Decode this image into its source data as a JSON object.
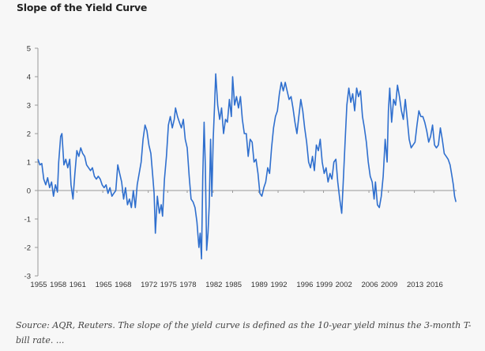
{
  "chart_data": {
    "type": "line",
    "title": "Slope of the Yield Curve",
    "xlabel": "",
    "ylabel": "",
    "ylim": [
      -3,
      5
    ],
    "xlim": [
      1955,
      2019.5
    ],
    "yticks": [
      5,
      4,
      3,
      2,
      1,
      0,
      -1,
      -2,
      -3
    ],
    "xtick_labels": [
      "1955",
      "1958",
      "1961",
      "1965",
      "1968",
      "1972",
      "1975",
      "1978",
      "1982",
      "1985",
      "1989",
      "1992",
      "1996",
      "1999",
      "2002",
      "2006",
      "2009",
      "2013",
      "2016"
    ],
    "grid": false,
    "legend": "none",
    "line_color": "#2f6fce",
    "series": [
      {
        "name": "10-year yield minus 3-month T-bill rate",
        "points": [
          [
            1955.0,
            1.1
          ],
          [
            1955.3,
            0.9
          ],
          [
            1955.6,
            0.95
          ],
          [
            1955.9,
            0.4
          ],
          [
            1956.2,
            0.2
          ],
          [
            1956.5,
            0.45
          ],
          [
            1956.8,
            0.1
          ],
          [
            1957.1,
            0.3
          ],
          [
            1957.4,
            -0.2
          ],
          [
            1957.7,
            0.2
          ],
          [
            1958.0,
            -0.05
          ],
          [
            1958.2,
            1.0
          ],
          [
            1958.5,
            1.9
          ],
          [
            1958.7,
            2.0
          ],
          [
            1959.0,
            0.9
          ],
          [
            1959.3,
            1.1
          ],
          [
            1959.6,
            0.8
          ],
          [
            1959.9,
            1.1
          ],
          [
            1960.1,
            0.2
          ],
          [
            1960.4,
            -0.3
          ],
          [
            1960.7,
            0.6
          ],
          [
            1961.0,
            1.4
          ],
          [
            1961.3,
            1.2
          ],
          [
            1961.6,
            1.5
          ],
          [
            1961.9,
            1.3
          ],
          [
            1962.2,
            1.2
          ],
          [
            1962.5,
            0.9
          ],
          [
            1962.8,
            0.8
          ],
          [
            1963.1,
            0.7
          ],
          [
            1963.4,
            0.8
          ],
          [
            1963.7,
            0.5
          ],
          [
            1964.0,
            0.4
          ],
          [
            1964.3,
            0.5
          ],
          [
            1964.6,
            0.4
          ],
          [
            1964.9,
            0.2
          ],
          [
            1965.2,
            0.1
          ],
          [
            1965.5,
            0.2
          ],
          [
            1965.8,
            -0.1
          ],
          [
            1966.1,
            0.1
          ],
          [
            1966.4,
            -0.2
          ],
          [
            1966.7,
            -0.1
          ],
          [
            1967.0,
            0.0
          ],
          [
            1967.3,
            0.9
          ],
          [
            1967.6,
            0.6
          ],
          [
            1967.9,
            0.3
          ],
          [
            1968.2,
            -0.3
          ],
          [
            1968.5,
            0.1
          ],
          [
            1968.8,
            -0.5
          ],
          [
            1969.1,
            -0.3
          ],
          [
            1969.4,
            -0.6
          ],
          [
            1969.7,
            0.0
          ],
          [
            1970.0,
            -0.6
          ],
          [
            1970.3,
            0.2
          ],
          [
            1970.6,
            0.6
          ],
          [
            1970.9,
            1.0
          ],
          [
            1971.2,
            1.8
          ],
          [
            1971.5,
            2.3
          ],
          [
            1971.8,
            2.1
          ],
          [
            1972.1,
            1.6
          ],
          [
            1972.4,
            1.3
          ],
          [
            1972.7,
            0.5
          ],
          [
            1972.9,
            -0.1
          ],
          [
            1973.1,
            -1.5
          ],
          [
            1973.4,
            -0.2
          ],
          [
            1973.7,
            -0.8
          ],
          [
            1974.0,
            -0.5
          ],
          [
            1974.2,
            -0.9
          ],
          [
            1974.5,
            0.4
          ],
          [
            1974.8,
            1.2
          ],
          [
            1975.1,
            2.3
          ],
          [
            1975.4,
            2.6
          ],
          [
            1975.7,
            2.2
          ],
          [
            1976.0,
            2.5
          ],
          [
            1976.2,
            2.9
          ],
          [
            1976.5,
            2.6
          ],
          [
            1976.8,
            2.4
          ],
          [
            1977.1,
            2.2
          ],
          [
            1977.4,
            2.5
          ],
          [
            1977.7,
            1.8
          ],
          [
            1978.0,
            1.5
          ],
          [
            1978.3,
            0.5
          ],
          [
            1978.6,
            -0.3
          ],
          [
            1978.9,
            -0.4
          ],
          [
            1979.2,
            -0.6
          ],
          [
            1979.5,
            -1.1
          ],
          [
            1979.8,
            -2.0
          ],
          [
            1980.0,
            -1.5
          ],
          [
            1980.2,
            -2.4
          ],
          [
            1980.4,
            0.5
          ],
          [
            1980.6,
            2.4
          ],
          [
            1980.8,
            0.8
          ],
          [
            1981.0,
            -2.1
          ],
          [
            1981.2,
            -1.5
          ],
          [
            1981.4,
            -0.5
          ],
          [
            1981.6,
            1.8
          ],
          [
            1981.8,
            -0.2
          ],
          [
            1982.0,
            1.8
          ],
          [
            1982.2,
            2.9
          ],
          [
            1982.4,
            4.1
          ],
          [
            1982.7,
            3.0
          ],
          [
            1983.0,
            2.5
          ],
          [
            1983.3,
            2.9
          ],
          [
            1983.6,
            2.0
          ],
          [
            1983.9,
            2.5
          ],
          [
            1984.2,
            2.4
          ],
          [
            1984.5,
            3.2
          ],
          [
            1984.8,
            2.6
          ],
          [
            1985.0,
            4.0
          ],
          [
            1985.3,
            3.0
          ],
          [
            1985.6,
            3.3
          ],
          [
            1985.9,
            2.9
          ],
          [
            1986.2,
            3.3
          ],
          [
            1986.5,
            2.5
          ],
          [
            1986.8,
            2.0
          ],
          [
            1987.1,
            2.0
          ],
          [
            1987.4,
            1.2
          ],
          [
            1987.7,
            1.8
          ],
          [
            1988.0,
            1.7
          ],
          [
            1988.3,
            1.0
          ],
          [
            1988.6,
            1.1
          ],
          [
            1988.9,
            0.6
          ],
          [
            1989.2,
            -0.1
          ],
          [
            1989.5,
            -0.2
          ],
          [
            1989.8,
            0.1
          ],
          [
            1990.1,
            0.3
          ],
          [
            1990.4,
            0.8
          ],
          [
            1990.7,
            0.6
          ],
          [
            1991.0,
            1.5
          ],
          [
            1991.3,
            2.2
          ],
          [
            1991.6,
            2.6
          ],
          [
            1991.9,
            2.8
          ],
          [
            1992.2,
            3.4
          ],
          [
            1992.5,
            3.8
          ],
          [
            1992.8,
            3.5
          ],
          [
            1993.1,
            3.8
          ],
          [
            1993.4,
            3.5
          ],
          [
            1993.7,
            3.2
          ],
          [
            1994.0,
            3.3
          ],
          [
            1994.3,
            2.9
          ],
          [
            1994.6,
            2.4
          ],
          [
            1994.9,
            2.0
          ],
          [
            1995.2,
            2.6
          ],
          [
            1995.5,
            3.2
          ],
          [
            1995.8,
            2.8
          ],
          [
            1996.1,
            2.2
          ],
          [
            1996.4,
            1.7
          ],
          [
            1996.7,
            1.0
          ],
          [
            1997.0,
            0.8
          ],
          [
            1997.3,
            1.2
          ],
          [
            1997.6,
            0.7
          ],
          [
            1997.9,
            1.6
          ],
          [
            1998.2,
            1.4
          ],
          [
            1998.5,
            1.8
          ],
          [
            1998.8,
            1.0
          ],
          [
            1999.1,
            0.6
          ],
          [
            1999.4,
            0.8
          ],
          [
            1999.7,
            0.3
          ],
          [
            2000.0,
            0.6
          ],
          [
            2000.3,
            0.4
          ],
          [
            2000.6,
            1.0
          ],
          [
            2000.9,
            1.1
          ],
          [
            2001.2,
            0.3
          ],
          [
            2001.5,
            -0.3
          ],
          [
            2001.8,
            -0.8
          ],
          [
            2002.0,
            0.1
          ],
          [
            2002.3,
            1.6
          ],
          [
            2002.6,
            3.0
          ],
          [
            2002.9,
            3.6
          ],
          [
            2003.2,
            3.1
          ],
          [
            2003.5,
            3.4
          ],
          [
            2003.8,
            2.8
          ],
          [
            2004.1,
            3.6
          ],
          [
            2004.4,
            3.3
          ],
          [
            2004.7,
            3.5
          ],
          [
            2005.0,
            2.6
          ],
          [
            2005.3,
            2.2
          ],
          [
            2005.6,
            1.7
          ],
          [
            2005.9,
            1.0
          ],
          [
            2006.2,
            0.5
          ],
          [
            2006.5,
            0.3
          ],
          [
            2006.8,
            -0.3
          ],
          [
            2007.0,
            0.3
          ],
          [
            2007.3,
            -0.5
          ],
          [
            2007.6,
            -0.6
          ],
          [
            2007.9,
            -0.2
          ],
          [
            2008.2,
            0.5
          ],
          [
            2008.5,
            1.8
          ],
          [
            2008.8,
            1.0
          ],
          [
            2009.0,
            2.8
          ],
          [
            2009.2,
            3.6
          ],
          [
            2009.5,
            2.4
          ],
          [
            2009.8,
            3.2
          ],
          [
            2010.1,
            3.0
          ],
          [
            2010.4,
            3.7
          ],
          [
            2010.7,
            3.3
          ],
          [
            2011.0,
            2.8
          ],
          [
            2011.3,
            2.5
          ],
          [
            2011.6,
            3.2
          ],
          [
            2011.9,
            2.5
          ],
          [
            2012.2,
            1.8
          ],
          [
            2012.5,
            1.5
          ],
          [
            2012.8,
            1.6
          ],
          [
            2013.1,
            1.7
          ],
          [
            2013.4,
            2.3
          ],
          [
            2013.7,
            2.8
          ],
          [
            2014.0,
            2.6
          ],
          [
            2014.3,
            2.6
          ],
          [
            2014.6,
            2.4
          ],
          [
            2014.9,
            2.1
          ],
          [
            2015.2,
            1.7
          ],
          [
            2015.5,
            1.9
          ],
          [
            2015.8,
            2.3
          ],
          [
            2016.1,
            1.6
          ],
          [
            2016.4,
            1.5
          ],
          [
            2016.7,
            1.6
          ],
          [
            2017.0,
            2.2
          ],
          [
            2017.3,
            1.8
          ],
          [
            2017.6,
            1.3
          ],
          [
            2017.9,
            1.2
          ],
          [
            2018.2,
            1.1
          ],
          [
            2018.5,
            0.9
          ],
          [
            2018.8,
            0.5
          ],
          [
            2019.0,
            0.2
          ],
          [
            2019.2,
            -0.2
          ],
          [
            2019.4,
            -0.4
          ]
        ]
      }
    ]
  },
  "caption": "Source: AQR, Reuters. The slope of the yield curve is defined as the 10-year yield minus the 3-month T-bill rate. ..."
}
